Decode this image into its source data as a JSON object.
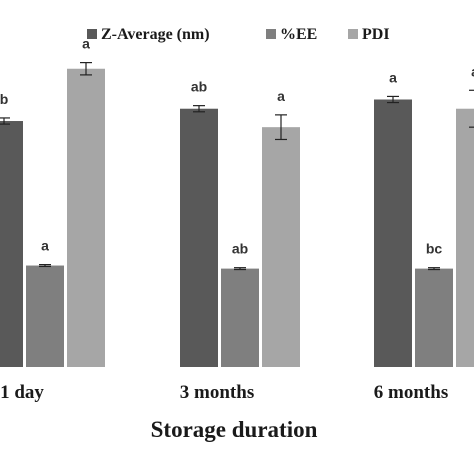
{
  "chart_data": {
    "type": "bar",
    "title": "",
    "xlabel": "Storage duration",
    "ylabel": "",
    "categories": [
      "1 day",
      "3 months",
      "6 months"
    ],
    "series": [
      {
        "name": "Z-Average (nm)",
        "color": "#595959",
        "values": [
          0.8,
          0.84,
          0.87
        ],
        "errors": [
          0.01,
          0.01,
          0.01
        ],
        "labels": [
          "b",
          "ab",
          "a"
        ]
      },
      {
        "name": "%EE",
        "color": "#7f7f7f",
        "values": [
          0.33,
          0.32,
          0.32
        ],
        "errors": [
          0.003,
          0.003,
          0.003
        ],
        "labels": [
          "a",
          "ab",
          "bc"
        ]
      },
      {
        "name": "PDI",
        "color": "#a6a6a6",
        "values": [
          0.97,
          0.78,
          0.84
        ],
        "errors": [
          0.02,
          0.04,
          0.06
        ],
        "labels": [
          "a",
          "a",
          "a"
        ]
      }
    ],
    "ylim": [
      0,
      1.07
    ],
    "grid": false,
    "legend": "top"
  }
}
